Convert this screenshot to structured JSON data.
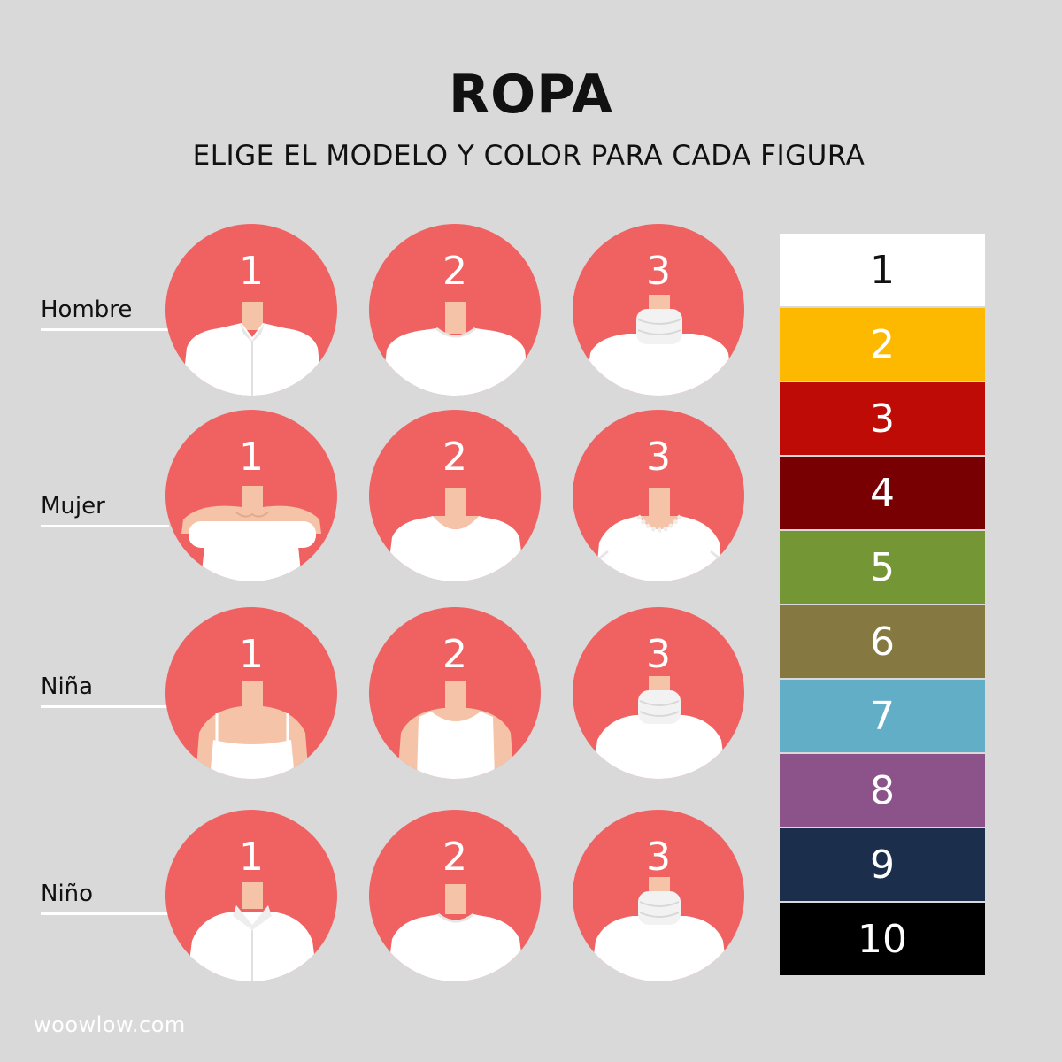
{
  "title": "ROPA",
  "subtitle": "ELIGE EL MODELO Y COLOR PARA CADA FIGURA",
  "rows": [
    {
      "label": "Hombre",
      "models": [
        "1",
        "2",
        "3"
      ]
    },
    {
      "label": "Mujer",
      "models": [
        "1",
        "2",
        "3"
      ]
    },
    {
      "label": "Niña",
      "models": [
        "1",
        "2",
        "3"
      ]
    },
    {
      "label": "Niño",
      "models": [
        "1",
        "2",
        "3"
      ]
    }
  ],
  "colors": [
    {
      "label": "1",
      "color": "#ffffff",
      "text_color": "#111111"
    },
    {
      "label": "2",
      "color": "#fdb900",
      "text_color": "#ffffff"
    },
    {
      "label": "3",
      "color": "#bf0b06",
      "text_color": "#ffffff"
    },
    {
      "label": "4",
      "color": "#780002",
      "text_color": "#ffffff"
    },
    {
      "label": "5",
      "color": "#749635",
      "text_color": "#ffffff"
    },
    {
      "label": "6",
      "color": "#857841",
      "text_color": "#ffffff"
    },
    {
      "label": "7",
      "color": "#63aec7",
      "text_color": "#ffffff"
    },
    {
      "label": "8",
      "color": "#8c538a",
      "text_color": "#ffffff"
    },
    {
      "label": "9",
      "color": "#1b2f4c",
      "text_color": "#ffffff"
    },
    {
      "label": "10",
      "color": "#000000",
      "text_color": "#ffffff"
    }
  ],
  "footer": "woowlow.com",
  "accent_color": "#f06262",
  "skin_color": "#f5c4a8"
}
